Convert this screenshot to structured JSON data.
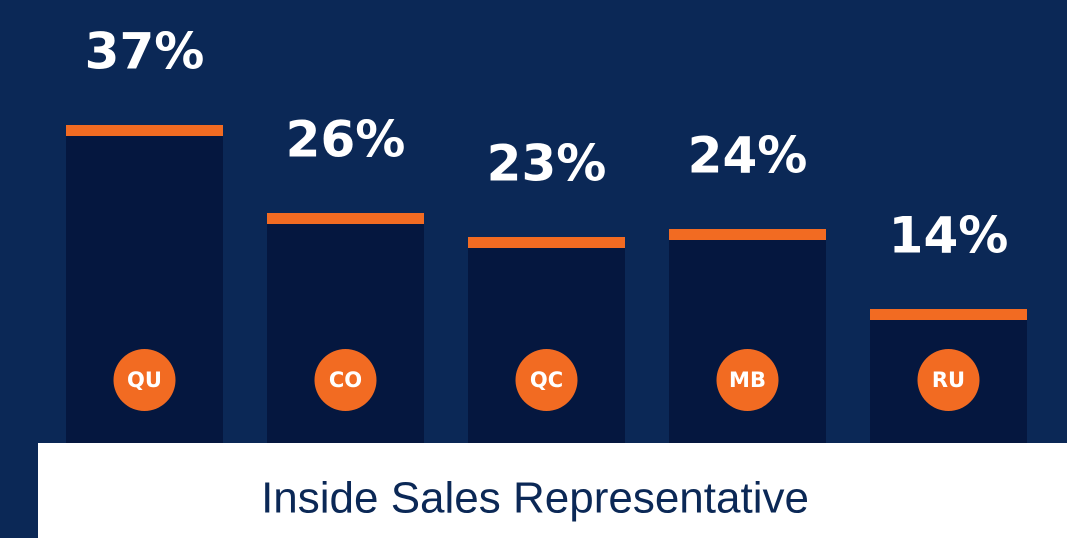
{
  "chart_data": {
    "type": "bar",
    "title": "Inside Sales Representative",
    "categories": [
      "QU",
      "CO",
      "QC",
      "MB",
      "RU"
    ],
    "values": [
      37,
      26,
      23,
      24,
      14
    ],
    "value_labels": [
      "37%",
      "26%",
      "23%",
      "24%",
      "14%"
    ],
    "color": "#05173f",
    "accent_color": "#f26b22",
    "ylim": [
      -2.75,
      40
    ]
  }
}
